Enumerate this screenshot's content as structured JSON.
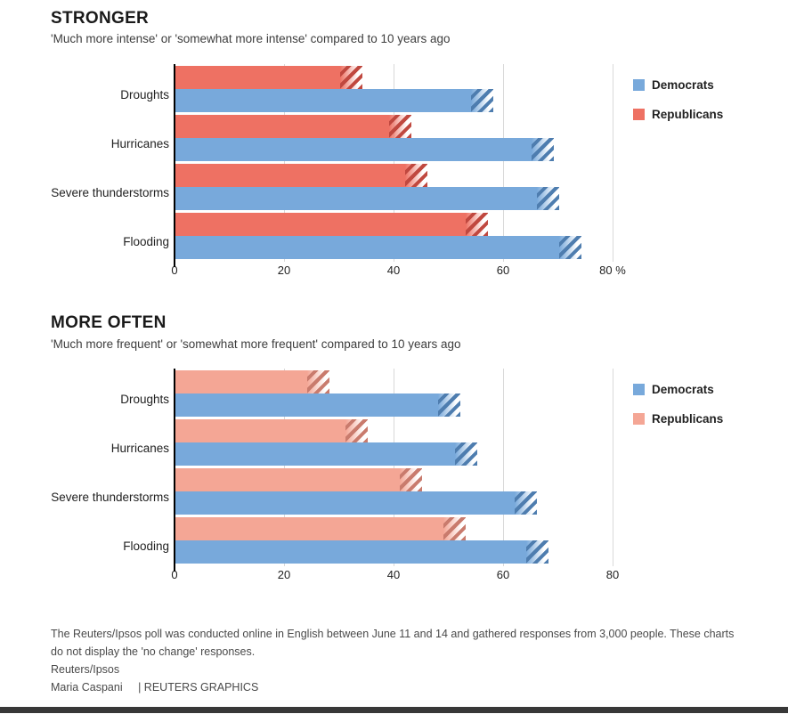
{
  "page": {
    "background": "#FFFFFF",
    "bottom_bar_color": "#383838"
  },
  "colors": {
    "democrat": "#78A9DB",
    "democrat_stripe": "#4E7DAF",
    "republican": "#EE7163",
    "republican_stripe": "#C0483F",
    "republican_light": "#F4A695",
    "republican_light_stripe": "#C97B6D",
    "gridline": "#D9D9D9",
    "axis": "#000000"
  },
  "chart_data": [
    {
      "type": "bar",
      "orientation": "horizontal",
      "title": "STRONGER",
      "subtitle": "'Much more intense' or 'somewhat more intense' compared to 10 years ago",
      "categories": [
        "Droughts",
        "Hurricanes",
        "Severe thunderstorms",
        "Flooding"
      ],
      "series": [
        {
          "name": "Democrats",
          "values": [
            54,
            65,
            66,
            70
          ],
          "color_key": "democrat"
        },
        {
          "name": "Republicans",
          "values": [
            30,
            39,
            42,
            53
          ],
          "color_key": "republican"
        }
      ],
      "hatch_extension_pts": 4,
      "xlim": [
        0,
        83
      ],
      "ticks": [
        0,
        20,
        40,
        60,
        80
      ],
      "tick_labels": [
        "0",
        "20",
        "40",
        "60",
        "80 %"
      ],
      "grid": true,
      "legend_position": "top-right"
    },
    {
      "type": "bar",
      "orientation": "horizontal",
      "title": "MORE OFTEN",
      "subtitle": "'Much more frequent' or 'somewhat more frequent' compared to 10 years ago",
      "categories": [
        "Droughts",
        "Hurricanes",
        "Severe thunderstorms",
        "Flooding"
      ],
      "series": [
        {
          "name": "Democrats",
          "values": [
            48,
            51,
            62,
            64
          ],
          "color_key": "democrat"
        },
        {
          "name": "Republicans",
          "values": [
            24,
            31,
            41,
            49
          ],
          "color_key": "republican_light"
        }
      ],
      "hatch_extension_pts": 4,
      "xlim": [
        0,
        83
      ],
      "ticks": [
        0,
        20,
        40,
        60,
        80
      ],
      "tick_labels": [
        "0",
        "20",
        "40",
        "60",
        "80"
      ],
      "grid": true,
      "legend_position": "top-right"
    }
  ],
  "footer": {
    "note_lines": [
      "The Reuters/Ipsos poll was conducted online in English between June 11 and 14 and gathered responses from 3,000 people. These charts",
      "do not display the 'no change' responses."
    ],
    "source": "Reuters/Ipsos",
    "byline": "Maria Caspani",
    "credit": "| REUTERS GRAPHICS"
  }
}
